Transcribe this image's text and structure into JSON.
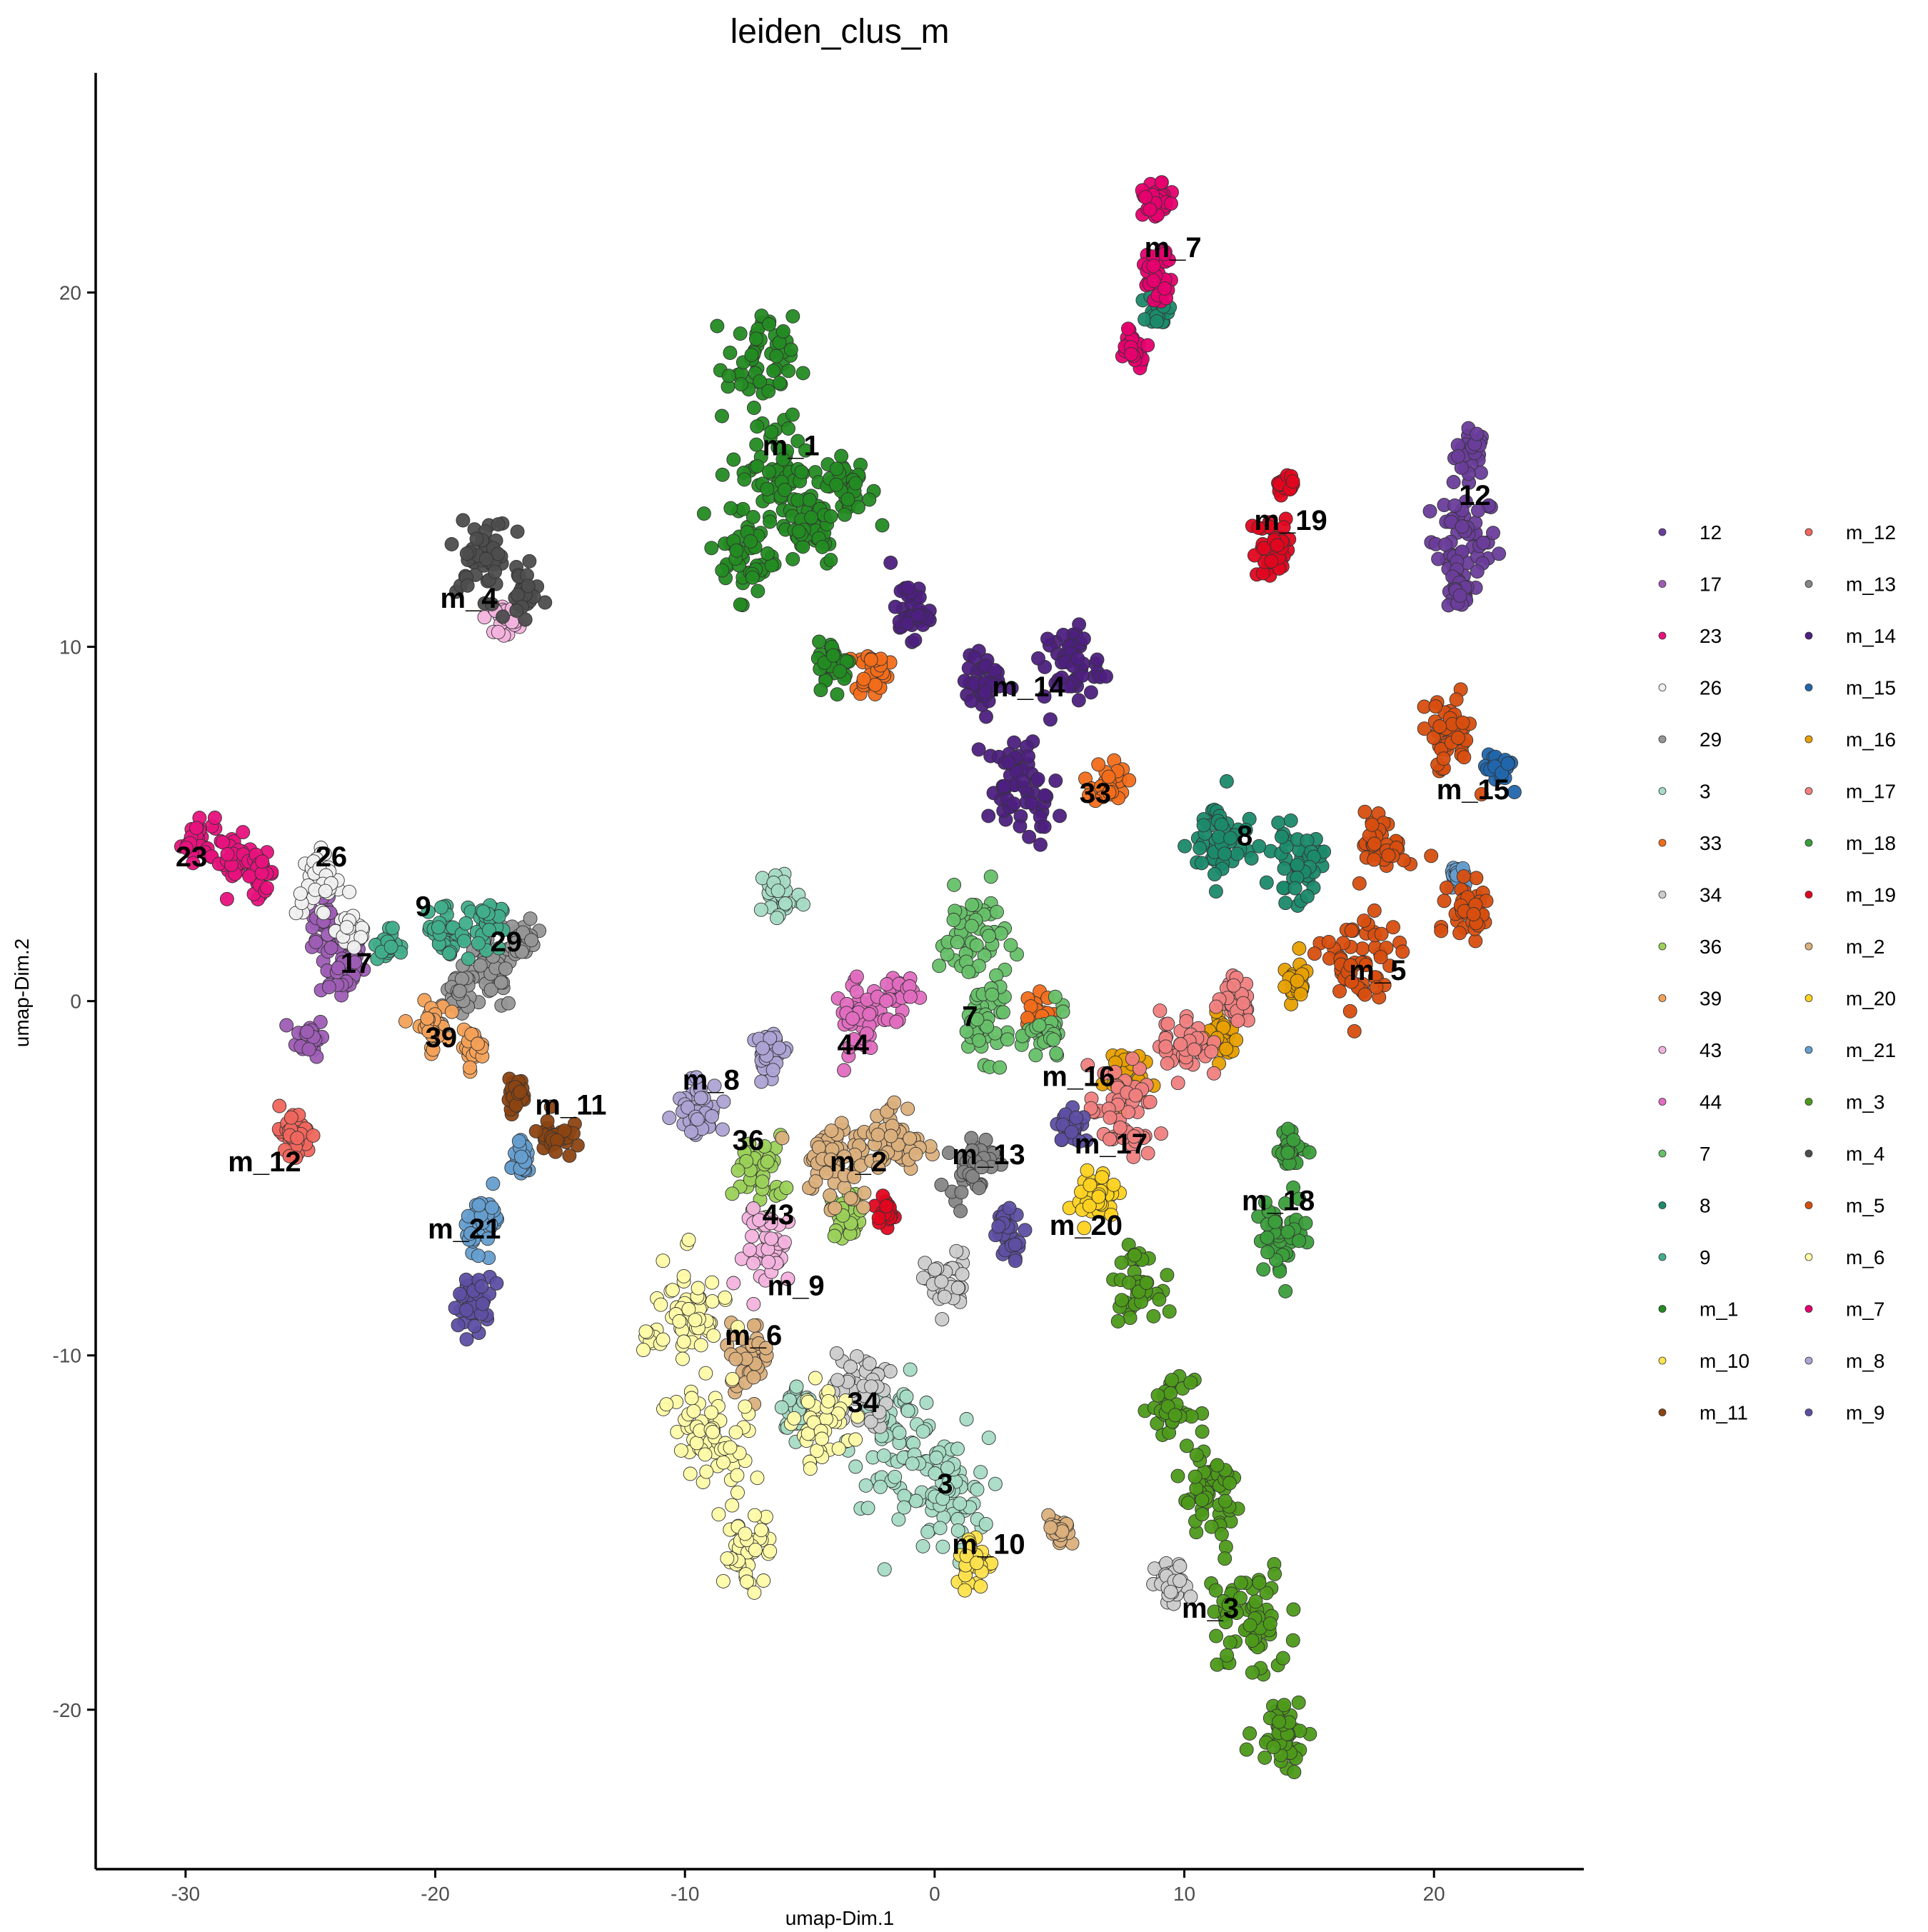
{
  "chart_data": {
    "type": "scatter",
    "title": "leiden_clus_m",
    "xlabel": "umap-Dim.1",
    "ylabel": "umap-Dim.2",
    "xlim": [
      -33.6,
      26
    ],
    "ylim": [
      -24.5,
      26.2
    ],
    "xticks": [
      -30,
      -20,
      -10,
      0,
      10,
      20
    ],
    "yticks": [
      -20,
      -10,
      0,
      10,
      20
    ],
    "grid": false,
    "legend_position": "right",
    "legend_title": "",
    "clusters": [
      {
        "name": "12",
        "color": "#6A3D9A",
        "label_pos": [
          21,
          14
        ],
        "pts": [
          [
            21.5,
            15.5,
            0.6
          ],
          [
            21.2,
            13,
            1.2
          ],
          [
            21,
            11.5,
            0.4
          ]
        ]
      },
      {
        "name": "17",
        "color": "#9E5DB5",
        "label_pos": [
          -23.8,
          0.8
        ],
        "pts": [
          [
            -23.8,
            1,
            0.9
          ],
          [
            -25,
            -1,
            0.5
          ],
          [
            -24.5,
            2.3,
            0.5
          ]
        ]
      },
      {
        "name": "23",
        "color": "#E8127D",
        "label_pos": [
          -30.4,
          3.8
        ],
        "pts": [
          [
            -29.5,
            4.6,
            0.6
          ],
          [
            -28,
            4,
            0.6
          ],
          [
            -27,
            3.6,
            0.5
          ]
        ]
      },
      {
        "name": "26",
        "color": "#F0F0F0",
        "label_pos": [
          -24.8,
          3.8
        ],
        "pts": [
          [
            -24.7,
            3.3,
            0.8
          ],
          [
            -23.3,
            2,
            0.6
          ]
        ]
      },
      {
        "name": "29",
        "color": "#969696",
        "label_pos": [
          -17.8,
          1.4
        ],
        "pts": [
          [
            -17.8,
            0.7,
            0.9
          ],
          [
            -19,
            0.2,
            0.6
          ],
          [
            -16.5,
            1.8,
            0.5
          ]
        ]
      },
      {
        "name": "3",
        "color": "#A6DBC5",
        "label_pos": [
          0.1,
          -13.9
        ],
        "pts": [
          [
            -1.5,
            -12.5,
            1.6
          ],
          [
            0.5,
            -14,
            1.5
          ],
          [
            -6.2,
            3,
            0.8
          ],
          [
            -5.5,
            -11.5,
            0.6
          ]
        ]
      },
      {
        "name": "33",
        "color": "#F26D1A",
        "label_pos": [
          5.8,
          5.6
        ],
        "pts": [
          [
            7,
            6.2,
            0.6
          ],
          [
            -2.5,
            9.3,
            0.6
          ],
          [
            4,
            -0.5,
            0.6
          ]
        ]
      },
      {
        "name": "34",
        "color": "#CCCCCC",
        "label_pos": [
          -3.5,
          -11.6
        ],
        "pts": [
          [
            -3,
            -11,
            1
          ],
          [
            0.5,
            -8,
            0.8
          ],
          [
            9.5,
            -16.5,
            0.6
          ]
        ]
      },
      {
        "name": "36",
        "color": "#9BD158",
        "label_pos": [
          -8.1,
          -4.2
        ],
        "pts": [
          [
            -7,
            -4.8,
            0.9
          ],
          [
            -3.5,
            -6,
            0.6
          ]
        ]
      },
      {
        "name": "39",
        "color": "#F4A158",
        "label_pos": [
          -20.4,
          -1.3
        ],
        "pts": [
          [
            -20.2,
            -0.7,
            0.6
          ],
          [
            -18.5,
            -1.3,
            0.4
          ]
        ]
      },
      {
        "name": "43",
        "color": "#F3B3DE",
        "label_pos": [
          -6.9,
          -6.3
        ],
        "pts": [
          [
            -6.5,
            -7,
            1
          ],
          [
            -17.2,
            10.8,
            0.4
          ]
        ]
      },
      {
        "name": "44",
        "color": "#E26DC0",
        "label_pos": [
          -3.9,
          -1.5
        ],
        "pts": [
          [
            -3,
            -0.5,
            0.9
          ],
          [
            -1.5,
            0.2,
            0.6
          ]
        ]
      },
      {
        "name": "7",
        "color": "#66C068",
        "label_pos": [
          1.1,
          -0.7
        ],
        "pts": [
          [
            1.5,
            1.8,
            1.2
          ],
          [
            2,
            -0.5,
            1
          ],
          [
            4.5,
            -1,
            0.7
          ]
        ]
      },
      {
        "name": "8",
        "color": "#1B8A6B",
        "label_pos": [
          12.1,
          4.4
        ],
        "pts": [
          [
            11.5,
            4.5,
            1.2
          ],
          [
            14.5,
            3.8,
            0.9
          ],
          [
            9,
            19.5,
            0.4
          ]
        ]
      },
      {
        "name": "9",
        "color": "#41AE8B",
        "label_pos": [
          -20.8,
          2.4
        ],
        "pts": [
          [
            -19.5,
            2,
            0.8
          ],
          [
            -18,
            2.2,
            0.6
          ],
          [
            -22,
            1.6,
            0.4
          ]
        ]
      },
      {
        "name": "m_1",
        "color": "#238B22",
        "label_pos": [
          -6.9,
          15.4
        ],
        "pts": [
          [
            -7,
            18,
            1.2
          ],
          [
            -6.5,
            15,
            1.5
          ],
          [
            -7.5,
            12.5,
            1
          ],
          [
            -5,
            13.5,
            1.1
          ],
          [
            -4,
            9.5,
            0.6
          ],
          [
            -3.5,
            14.5,
            0.9
          ]
        ]
      },
      {
        "name": "m_10",
        "color": "#FFE34D",
        "label_pos": [
          0.7,
          -15.6
        ],
        "pts": [
          [
            1.6,
            -15.8,
            0.7
          ]
        ]
      },
      {
        "name": "m_11",
        "color": "#8C4412",
        "label_pos": [
          -16,
          -3.2
        ],
        "pts": [
          [
            -15.2,
            -3.8,
            0.6
          ],
          [
            -16.8,
            -2.6,
            0.4
          ]
        ]
      },
      {
        "name": "m_12",
        "color": "#F0665D",
        "label_pos": [
          -28.3,
          -4.8
        ],
        "pts": [
          [
            -25.7,
            -3.8,
            0.7
          ]
        ]
      },
      {
        "name": "m_13",
        "color": "#858585",
        "label_pos": [
          0.7,
          -4.6
        ],
        "pts": [
          [
            1.5,
            -4.6,
            0.8
          ]
        ]
      },
      {
        "name": "m_14",
        "color": "#4D2080",
        "label_pos": [
          2.3,
          8.6
        ],
        "pts": [
          [
            3.5,
            6,
            1.3
          ],
          [
            5.5,
            9.5,
            1
          ],
          [
            -1,
            11,
            0.7
          ],
          [
            2,
            9,
            0.7
          ]
        ]
      },
      {
        "name": "m_15",
        "color": "#2166AC",
        "label_pos": [
          20.1,
          5.7
        ],
        "pts": [
          [
            22.6,
            6.6,
            0.5
          ]
        ]
      },
      {
        "name": "m_16",
        "color": "#E8A000",
        "label_pos": [
          4.3,
          -2.4
        ],
        "pts": [
          [
            7.5,
            -2,
            0.7
          ],
          [
            11.5,
            -1,
            0.6
          ],
          [
            14.5,
            0.5,
            0.5
          ]
        ]
      },
      {
        "name": "m_17",
        "color": "#F08080",
        "label_pos": [
          5.6,
          -4.3
        ],
        "pts": [
          [
            7.5,
            -3.2,
            1.2
          ],
          [
            10,
            -1.2,
            0.9
          ],
          [
            12,
            0,
            0.6
          ]
        ]
      },
      {
        "name": "m_18",
        "color": "#3B9E3B",
        "label_pos": [
          12.3,
          -5.9
        ],
        "pts": [
          [
            14,
            -6.5,
            1
          ],
          [
            14.3,
            -4.2,
            0.5
          ]
        ]
      },
      {
        "name": "m_19",
        "color": "#E0061F",
        "label_pos": [
          12.8,
          13.3
        ],
        "pts": [
          [
            13.6,
            12.8,
            0.8
          ],
          [
            14,
            14.6,
            0.3
          ],
          [
            -2,
            -5.9,
            0.3
          ]
        ]
      },
      {
        "name": "m_2",
        "color": "#DBB07C",
        "label_pos": [
          -4.2,
          -4.8
        ],
        "pts": [
          [
            -4,
            -4.5,
            1.3
          ],
          [
            -1.5,
            -4,
            1
          ],
          [
            -7.5,
            -10,
            0.8
          ],
          [
            5,
            -15,
            0.4
          ]
        ]
      },
      {
        "name": "m_20",
        "color": "#FFD21F",
        "label_pos": [
          4.6,
          -6.6
        ],
        "pts": [
          [
            6.5,
            -5.5,
            0.7
          ]
        ]
      },
      {
        "name": "m_21",
        "color": "#659ECF",
        "label_pos": [
          -20.3,
          -6.7
        ],
        "pts": [
          [
            -18,
            -6.2,
            0.7
          ],
          [
            -16.5,
            -4.5,
            0.4
          ],
          [
            21,
            3.5,
            0.3
          ]
        ]
      },
      {
        "name": "m_3",
        "color": "#4D9A1A",
        "label_pos": [
          9.9,
          -17.4
        ],
        "pts": [
          [
            11,
            -14,
            1.3
          ],
          [
            12.5,
            -17.5,
            1.5
          ],
          [
            14,
            -20.5,
            1
          ],
          [
            8,
            -8,
            0.8
          ],
          [
            9.5,
            -11.5,
            0.7
          ]
        ]
      },
      {
        "name": "m_4",
        "color": "#4D4D4D",
        "label_pos": [
          -19.8,
          11.1
        ],
        "pts": [
          [
            -18,
            12.5,
            1
          ],
          [
            -16.5,
            11.5,
            0.6
          ]
        ]
      },
      {
        "name": "m_5",
        "color": "#D84E0F",
        "label_pos": [
          16.6,
          0.6
        ],
        "pts": [
          [
            17,
            1,
            1.4
          ],
          [
            20.5,
            7.5,
            1
          ],
          [
            18,
            4.5,
            0.8
          ],
          [
            21.5,
            2.5,
            0.8
          ]
        ]
      },
      {
        "name": "m_6",
        "color": "#FFFBA8",
        "label_pos": [
          -8.4,
          -9.7
        ],
        "pts": [
          [
            -10,
            -9,
            1.5
          ],
          [
            -9,
            -12.5,
            1.5
          ],
          [
            -7.5,
            -15.5,
            0.9
          ],
          [
            -4.5,
            -12,
            1
          ]
        ]
      },
      {
        "name": "m_7",
        "color": "#E6006E",
        "label_pos": [
          8.4,
          21
        ],
        "pts": [
          [
            8.9,
            22.5,
            0.5
          ],
          [
            8.9,
            20.5,
            0.6
          ],
          [
            8,
            18.5,
            0.5
          ]
        ]
      },
      {
        "name": "m_8",
        "color": "#ADA3D4",
        "label_pos": [
          -10.1,
          -2.5
        ],
        "pts": [
          [
            -9.5,
            -3,
            0.8
          ],
          [
            -6.5,
            -1.5,
            0.6
          ]
        ]
      },
      {
        "name": "m_9",
        "color": "#5E4FA3",
        "label_pos": [
          -6.7,
          -8.3
        ],
        "pts": [
          [
            -18.5,
            -8.5,
            0.7
          ],
          [
            3,
            -6.5,
            0.6
          ],
          [
            5.5,
            -3.5,
            0.5
          ]
        ]
      }
    ]
  }
}
